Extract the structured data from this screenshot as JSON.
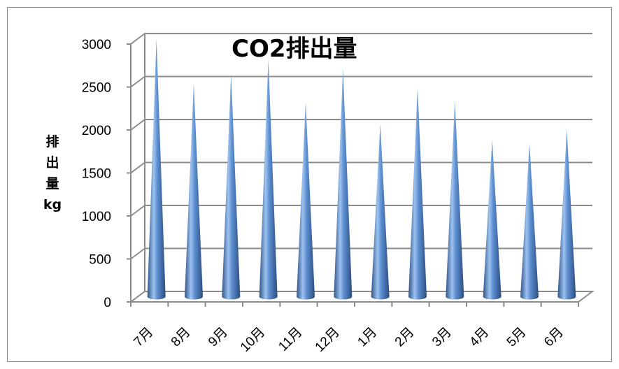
{
  "chart_data": {
    "type": "bar",
    "title": "CO2排出量",
    "ylabel": "排出量kg",
    "xlabel": "",
    "categories": [
      "7月",
      "8月",
      "9月",
      "10月",
      "11月",
      "12月",
      "1月",
      "2月",
      "3月",
      "4月",
      "5月",
      "6月"
    ],
    "values": [
      3000,
      2480,
      2590,
      2760,
      2260,
      2650,
      2010,
      2430,
      2280,
      1830,
      1780,
      1950
    ],
    "ylim": [
      0,
      3000
    ],
    "yticks": [
      0,
      500,
      1000,
      1500,
      2000,
      2500,
      3000
    ],
    "grid": true,
    "legend": "none",
    "bar_shape": "cone",
    "colors": {
      "bar_light": "#9fc3f0",
      "bar_mid": "#4f81bd",
      "bar_dark": "#2b4c80",
      "grid": "#8c8c8c"
    }
  }
}
